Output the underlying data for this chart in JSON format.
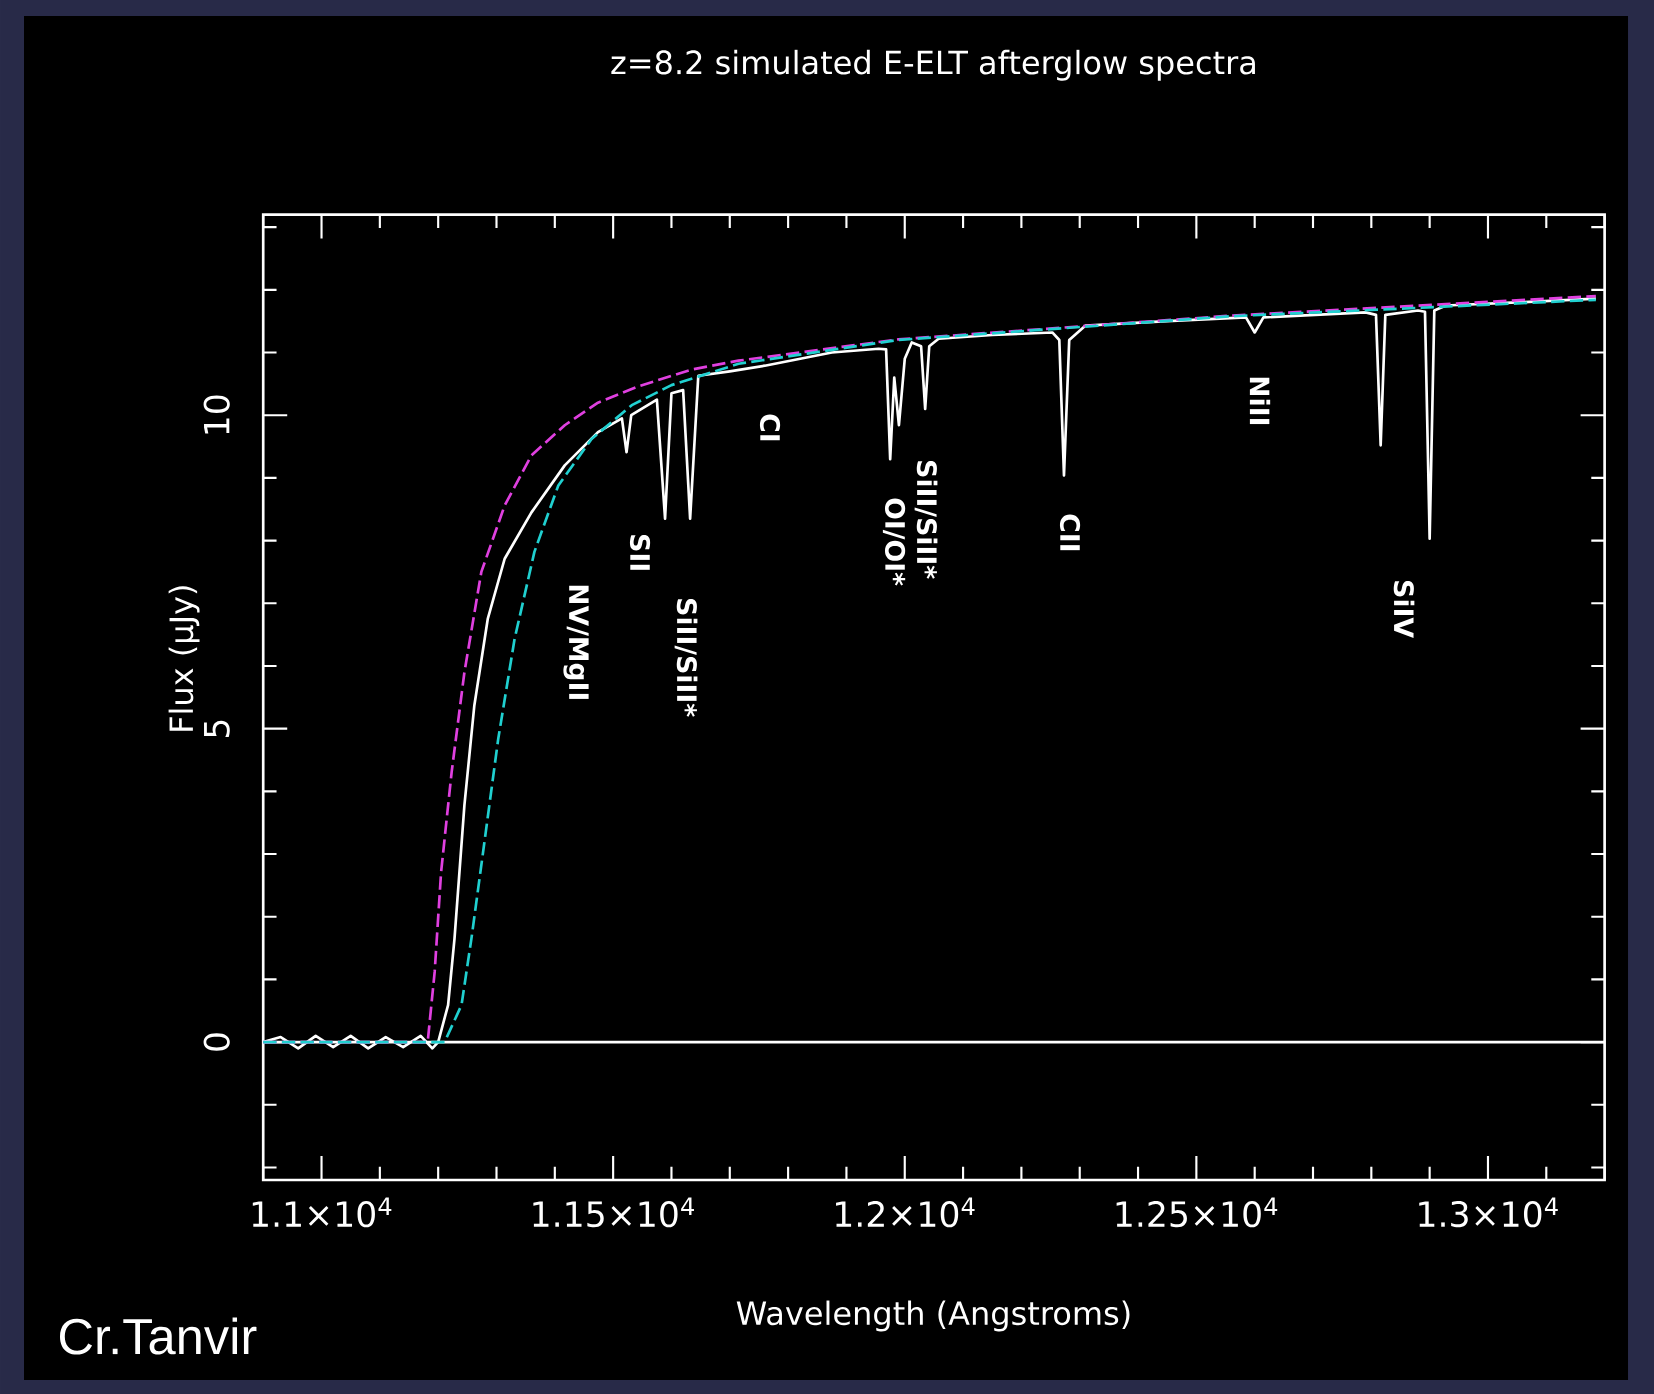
{
  "chart_data": {
    "type": "line",
    "title": "z=8.2 simulated E-ELT afterglow spectra",
    "xlabel": "Wavelength (Angstroms)",
    "ylabel": "Flux (μJy)",
    "xlim": [
      10900,
      13200
    ],
    "ylim": [
      -2.2,
      13.2
    ],
    "xticks": [
      {
        "value": 10900,
        "label": null
      },
      {
        "value": 11000,
        "label": "1.1×10$^{4}$"
      },
      {
        "value": 11100,
        "label": null
      },
      {
        "value": 11200,
        "label": null
      },
      {
        "value": 11300,
        "label": null
      },
      {
        "value": 11400,
        "label": null
      },
      {
        "value": 11500,
        "label": "1.15×10$^{4}$"
      },
      {
        "value": 11600,
        "label": null
      },
      {
        "value": 11700,
        "label": null
      },
      {
        "value": 11800,
        "label": null
      },
      {
        "value": 11900,
        "label": null
      },
      {
        "value": 12000,
        "label": "1.2×10$^{4}$"
      },
      {
        "value": 12100,
        "label": null
      },
      {
        "value": 12200,
        "label": null
      },
      {
        "value": 12300,
        "label": null
      },
      {
        "value": 12400,
        "label": null
      },
      {
        "value": 12500,
        "label": "1.25×10$^{4}$"
      },
      {
        "value": 12600,
        "label": null
      },
      {
        "value": 12700,
        "label": null
      },
      {
        "value": 12800,
        "label": null
      },
      {
        "value": 12900,
        "label": null
      },
      {
        "value": 13000,
        "label": "1.3×10$^{4}$"
      },
      {
        "value": 13100,
        "label": null
      },
      {
        "value": 13200,
        "label": null
      }
    ],
    "yticks": [
      {
        "value": -2,
        "label": null
      },
      {
        "value": -1,
        "label": null
      },
      0,
      {
        "value": 1,
        "label": null
      },
      {
        "value": 2,
        "label": null
      },
      {
        "value": 3,
        "label": null
      },
      {
        "value": 4,
        "label": null
      },
      5,
      {
        "value": 6,
        "label": null
      },
      {
        "value": 7,
        "label": null
      },
      {
        "value": 8,
        "label": null
      },
      {
        "value": 9,
        "label": null
      },
      10,
      {
        "value": 11,
        "label": null
      },
      {
        "value": 12,
        "label": null
      },
      {
        "value": 13,
        "label": null
      }
    ],
    "grid": false,
    "marker": "none",
    "ref_lines": [
      {
        "axis": "y",
        "value": 0,
        "color": "#ffffff"
      }
    ],
    "series": [
      {
        "color": "#ffffff",
        "line_style": "solid",
        "x": [
          10900,
          10930,
          10960,
          10990,
          11020,
          11050,
          11080,
          11110,
          11140,
          11170,
          11190,
          11200,
          11217,
          11228,
          11245,
          11262,
          11285,
          11314,
          11360,
          11417,
          11474,
          11515,
          11523,
          11531,
          11575,
          11589,
          11600,
          11620,
          11632,
          11646,
          11700,
          11760,
          11875,
          11955,
          11968,
          11975,
          11982,
          11990,
          12000,
          12012,
          12028,
          12035,
          12042,
          12058,
          12150,
          12253,
          12265,
          12273,
          12282,
          12310,
          12450,
          12585,
          12600,
          12615,
          12790,
          12808,
          12816,
          12824,
          12880,
          12892,
          12900,
          12908,
          12928,
          13050,
          13185
        ],
        "values": [
          0.0,
          0.08,
          -0.1,
          0.1,
          -0.08,
          0.1,
          -0.1,
          0.08,
          -0.08,
          0.1,
          -0.1,
          0.0,
          0.59,
          1.65,
          3.78,
          5.37,
          6.75,
          7.71,
          8.45,
          9.2,
          9.73,
          9.95,
          9.41,
          10.0,
          10.25,
          8.35,
          10.35,
          10.4,
          8.35,
          10.63,
          10.7,
          10.79,
          11.0,
          11.06,
          11.05,
          9.3,
          10.6,
          9.84,
          10.9,
          11.16,
          11.1,
          10.1,
          11.1,
          11.22,
          11.28,
          11.32,
          11.2,
          9.04,
          11.2,
          11.43,
          11.5,
          11.56,
          11.32,
          11.56,
          11.64,
          11.6,
          9.52,
          11.6,
          11.67,
          11.65,
          8.03,
          11.67,
          11.75,
          11.8,
          11.86
        ]
      },
      {
        "color": "#e040e0",
        "line_style": "dashed",
        "x": [
          10900,
          11182,
          11194,
          11205,
          11223,
          11245,
          11274,
          11314,
          11360,
          11417,
          11474,
          11543,
          11635,
          11715,
          11989,
          12562,
          13185
        ],
        "values": [
          0,
          0,
          1.12,
          2.71,
          4.3,
          5.9,
          7.5,
          8.56,
          9.36,
          9.84,
          10.2,
          10.46,
          10.73,
          10.87,
          11.21,
          11.59,
          11.9
        ]
      },
      {
        "color": "#20d0d0",
        "line_style": "dashed",
        "x": [
          10900,
          11211,
          11240,
          11257,
          11280,
          11303,
          11331,
          11365,
          11406,
          11463,
          11532,
          11600,
          11715,
          11989,
          12562,
          13185
        ],
        "values": [
          0,
          0,
          0.59,
          1.65,
          3.24,
          4.84,
          6.43,
          7.82,
          8.88,
          9.62,
          10.16,
          10.48,
          10.82,
          11.2,
          11.58,
          11.84
        ]
      }
    ],
    "annotations": [
      "Cr.Tanvir",
      "NV/MgII",
      "SII",
      "SiII/SiII*",
      "CI",
      "OI/OI*",
      "SiII/SiII*",
      "CII",
      "NiII",
      "SiIV"
    ]
  }
}
